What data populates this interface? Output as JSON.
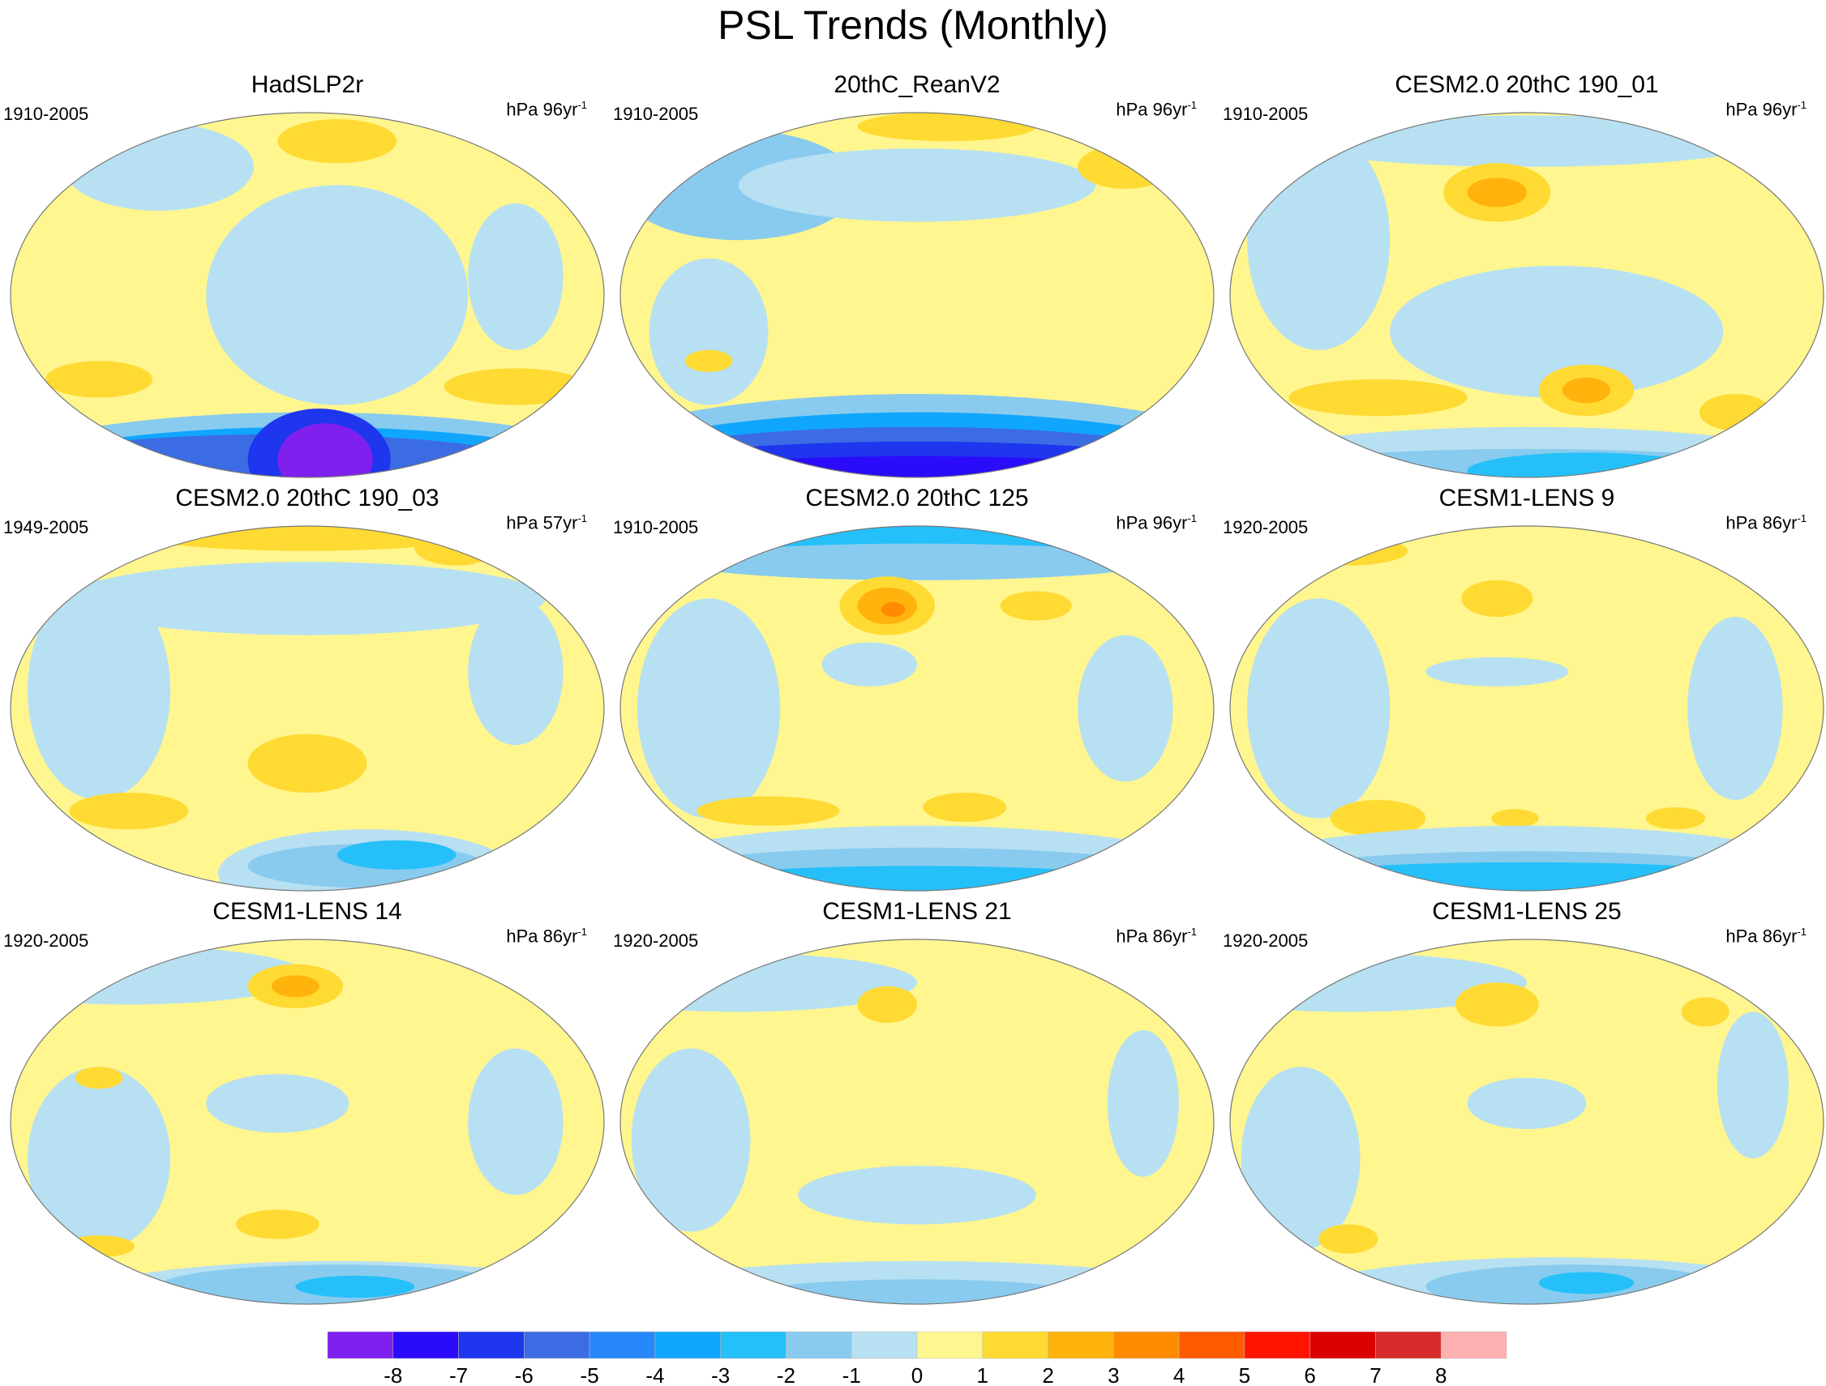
{
  "title": "PSL Trends (Monthly)",
  "chart_data": {
    "type": "heatmap",
    "title": "PSL Trends (Monthly)",
    "projection": "Robinson/ellipse global map, Pacific-centered",
    "panels": [
      {
        "name": "HadSLP2r",
        "period": "1910-2005",
        "units": "hPa 96yr",
        "units_exp": "-1"
      },
      {
        "name": "20thC_ReanV2",
        "period": "1910-2005",
        "units": "hPa 96yr",
        "units_exp": "-1"
      },
      {
        "name": "CESM2.0 20thC 190_01",
        "period": "1910-2005",
        "units": "hPa 96yr",
        "units_exp": "-1"
      },
      {
        "name": "CESM2.0 20thC 190_03",
        "period": "1949-2005",
        "units": "hPa 57yr",
        "units_exp": "-1"
      },
      {
        "name": "CESM2.0 20thC 125",
        "period": "1910-2005",
        "units": "hPa 96yr",
        "units_exp": "-1"
      },
      {
        "name": "CESM1-LENS 9",
        "period": "1920-2005",
        "units": "hPa 86yr",
        "units_exp": "-1"
      },
      {
        "name": "CESM1-LENS 14",
        "period": "1920-2005",
        "units": "hPa 86yr",
        "units_exp": "-1"
      },
      {
        "name": "CESM1-LENS 21",
        "period": "1920-2005",
        "units": "hPa 86yr",
        "units_exp": "-1"
      },
      {
        "name": "CESM1-LENS 25",
        "period": "1920-2005",
        "units": "hPa 86yr",
        "units_exp": "-1"
      }
    ],
    "colorbar": {
      "levels": [
        "-8",
        "-7",
        "-6",
        "-5",
        "-4",
        "-3",
        "-2",
        "-1",
        "0",
        "1",
        "2",
        "3",
        "4",
        "5",
        "6",
        "7",
        "8"
      ],
      "colors": [
        "#7f20ef",
        "#2a0cfb",
        "#1e36ee",
        "#3c6ce4",
        "#2688fa",
        "#10a6fe",
        "#25c0f9",
        "#89cbee",
        "#b7e0f2",
        "#fff68f",
        "#ffda33",
        "#ffb30c",
        "#ff8b00",
        "#ff5b00",
        "#ff1400",
        "#db0000",
        "#d82b2b",
        "#ffb0b0"
      ]
    }
  }
}
